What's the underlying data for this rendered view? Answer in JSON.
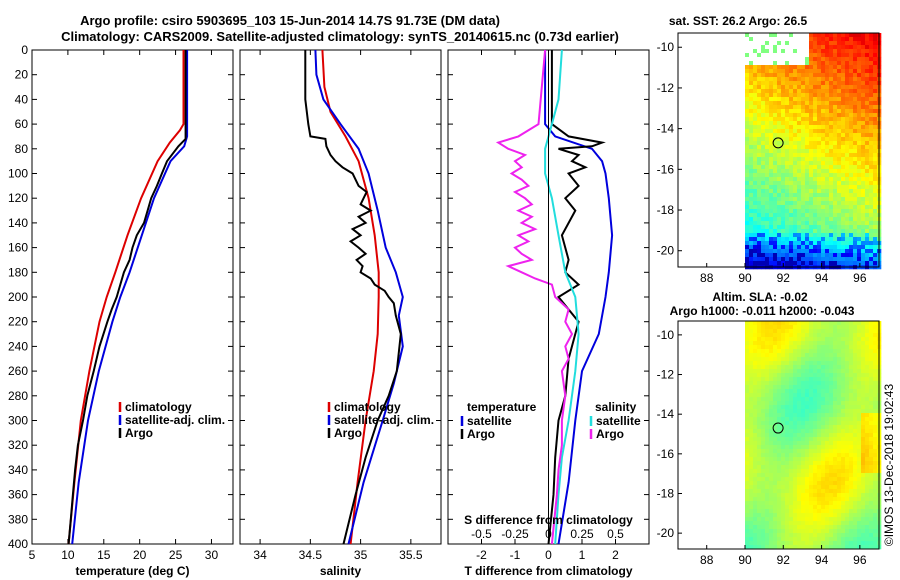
{
  "title_line1": "Argo profile: csiro 5903695_103 15-Jun-2014 14.7S 91.73E (DM data)",
  "title_line2": "Climatology: CARS2009. Satellite-adjusted climatology: synTS_20140615.nc (0.73d earlier)",
  "credit": "©IMOS 13-Dec-2018 19:02:43",
  "colors": {
    "climatology": "#dd0000",
    "satellite": "#0000dd",
    "argo": "#000000",
    "s_diff": "#ee22ee",
    "sat_s_diff": "#22dddd"
  },
  "chart_data": [
    {
      "type": "line",
      "id": "temperature",
      "xlabel": "temperature (deg C)",
      "xlim": [
        5,
        33
      ],
      "ylim": [
        400,
        0
      ],
      "xticks": [
        "5",
        "10",
        "15",
        "20",
        "25",
        "30"
      ],
      "xtick_vals": [
        5,
        10,
        15,
        20,
        25,
        30
      ],
      "yticks": [
        "0",
        "20",
        "40",
        "60",
        "80",
        "100",
        "120",
        "140",
        "160",
        "180",
        "200",
        "220",
        "240",
        "260",
        "280",
        "300",
        "320",
        "340",
        "360",
        "380",
        "400"
      ],
      "legend": [
        "climatology",
        "satellite-adj. clim.",
        "Argo"
      ],
      "series": [
        {
          "name": "climatology",
          "color": "climatology",
          "depth": [
            0,
            60,
            65,
            75,
            90,
            120,
            150,
            180,
            200,
            220,
            260,
            300,
            350,
            400
          ],
          "values": [
            26.1,
            26.1,
            25.6,
            24.2,
            22.5,
            20.2,
            18.3,
            16.6,
            15.4,
            14.4,
            13.0,
            11.8,
            10.9,
            10.1
          ]
        },
        {
          "name": "satellite-adj. clim.",
          "color": "satellite",
          "depth": [
            0,
            70,
            78,
            90,
            120,
            150,
            180,
            200,
            220,
            260,
            300,
            350,
            400
          ],
          "values": [
            26.6,
            26.6,
            26.2,
            24.3,
            22.0,
            20.3,
            18.6,
            17.3,
            16.2,
            14.3,
            12.8,
            11.5,
            10.6
          ]
        },
        {
          "name": "Argo",
          "color": "argo",
          "depth": [
            0,
            72,
            78,
            90,
            100,
            110,
            120,
            130,
            140,
            150,
            160,
            170,
            180,
            190,
            200,
            210,
            220,
            240,
            260,
            280,
            300,
            320,
            340,
            360,
            380,
            400
          ],
          "values": [
            26.4,
            26.4,
            25.4,
            23.8,
            23.1,
            22.4,
            21.6,
            21.1,
            20.6,
            19.6,
            19.0,
            18.6,
            17.8,
            17.3,
            16.8,
            16.1,
            15.5,
            14.4,
            13.6,
            12.7,
            12.1,
            11.4,
            11.0,
            10.7,
            10.4,
            10.1
          ]
        }
      ]
    },
    {
      "type": "line",
      "id": "salinity",
      "xlabel": "salinity",
      "xlim": [
        33.8,
        35.8
      ],
      "ylim": [
        400,
        0
      ],
      "xticks": [
        "34",
        "34.5",
        "35",
        "35.5"
      ],
      "xtick_vals": [
        34,
        34.5,
        35,
        35.5
      ],
      "legend": [
        "climatology",
        "satellite-adj. clim.",
        "Argo"
      ],
      "series": [
        {
          "name": "climatology",
          "color": "climatology",
          "depth": [
            0,
            30,
            50,
            70,
            90,
            120,
            150,
            180,
            200,
            230,
            260,
            300,
            350,
            400
          ],
          "values": [
            34.62,
            34.64,
            34.7,
            34.85,
            34.98,
            35.08,
            35.14,
            35.18,
            35.18,
            35.17,
            35.13,
            35.05,
            34.97,
            34.9
          ]
        },
        {
          "name": "satellite-adj. clim.",
          "color": "satellite",
          "depth": [
            0,
            20,
            40,
            60,
            80,
            100,
            130,
            160,
            180,
            200,
            215,
            240,
            270,
            300,
            350,
            400
          ],
          "values": [
            34.55,
            34.56,
            34.63,
            34.8,
            34.98,
            35.08,
            35.17,
            35.25,
            35.35,
            35.42,
            35.38,
            35.42,
            35.33,
            35.22,
            35.03,
            34.88
          ]
        },
        {
          "name": "Argo",
          "color": "argo",
          "depth": [
            0,
            40,
            60,
            70,
            72,
            78,
            85,
            90,
            95,
            100,
            105,
            110,
            115,
            120,
            125,
            130,
            135,
            140,
            145,
            150,
            155,
            160,
            165,
            170,
            175,
            180,
            185,
            190,
            195,
            200,
            205,
            215,
            230,
            245,
            260,
            280,
            300,
            330,
            360,
            400
          ],
          "values": [
            34.45,
            34.45,
            34.48,
            34.5,
            34.65,
            34.66,
            34.7,
            34.75,
            34.82,
            34.92,
            34.95,
            34.98,
            35.06,
            35.03,
            35.0,
            35.1,
            34.98,
            35.05,
            34.92,
            35.0,
            34.9,
            34.98,
            35.05,
            34.96,
            35.02,
            35.0,
            35.1,
            35.14,
            35.24,
            35.28,
            35.33,
            35.35,
            35.4,
            35.38,
            35.36,
            35.28,
            35.17,
            35.05,
            34.95,
            34.83
          ]
        }
      ]
    },
    {
      "type": "line",
      "id": "difference",
      "xlabel": "T difference from climatology",
      "xlabel_top": "S difference from climatology",
      "xlim": [
        -3,
        3
      ],
      "ylim": [
        400,
        0
      ],
      "xticks": [
        "-2",
        "-1",
        "0",
        "1",
        "2"
      ],
      "xtick_vals": [
        -2,
        -1,
        0,
        1,
        2
      ],
      "s_ticks": [
        "-0.5",
        "-0.25",
        "0",
        "0.25",
        "0.5"
      ],
      "s_tick_vals": [
        -2,
        -1,
        0,
        1,
        2
      ],
      "legend_left": {
        "title": "temperature",
        "items": [
          "satellite",
          "Argo"
        ]
      },
      "legend_right": {
        "title": "salinity",
        "items": [
          "satellite",
          "Argo"
        ]
      },
      "series": [
        {
          "name": "T satellite",
          "color": "satellite",
          "depth": [
            0,
            60,
            70,
            80,
            90,
            100,
            120,
            150,
            180,
            200,
            230,
            260,
            300,
            350,
            400
          ],
          "values": [
            -0.1,
            -0.1,
            0.2,
            1.3,
            1.6,
            1.7,
            1.8,
            1.9,
            1.8,
            1.7,
            1.5,
            1.0,
            0.8,
            0.6,
            0.3
          ]
        },
        {
          "name": "T Argo",
          "color": "argo",
          "depth": [
            0,
            60,
            70,
            75,
            78,
            80,
            85,
            90,
            95,
            100,
            110,
            120,
            130,
            150,
            170,
            180,
            190,
            200,
            220,
            250,
            280,
            300,
            330,
            360,
            400
          ],
          "values": [
            0.1,
            0.1,
            0.6,
            1.6,
            1.3,
            0.3,
            0.9,
            0.7,
            1.1,
            0.6,
            0.9,
            0.5,
            0.8,
            0.4,
            0.6,
            0.5,
            0.9,
            0.3,
            0.9,
            0.6,
            0.5,
            0.3,
            0.2,
            0.15,
            0.0
          ]
        },
        {
          "name": "S satellite",
          "color": "sat_s_diff",
          "depth": [
            0,
            40,
            60,
            80,
            100,
            120,
            150,
            180,
            200,
            230,
            260,
            300,
            330,
            360,
            400
          ],
          "values": [
            0.4,
            0.3,
            0.1,
            -0.1,
            -0.1,
            0.1,
            0.3,
            0.5,
            0.8,
            0.9,
            0.8,
            0.6,
            0.4,
            0.3,
            0.2
          ]
        },
        {
          "name": "S Argo",
          "color": "s_diff",
          "depth": [
            0,
            60,
            70,
            75,
            80,
            85,
            90,
            95,
            100,
            105,
            110,
            115,
            120,
            125,
            130,
            135,
            140,
            145,
            150,
            155,
            160,
            165,
            170,
            175,
            180,
            185,
            190,
            200,
            210,
            220,
            230,
            240,
            250,
            260,
            280,
            300,
            320,
            340,
            360,
            400
          ],
          "values": [
            -0.1,
            -0.3,
            -0.9,
            -1.5,
            -1.2,
            -0.7,
            -1.0,
            -0.8,
            -1.1,
            -0.8,
            -0.6,
            -1.0,
            -0.7,
            -0.5,
            -0.9,
            -0.5,
            -0.8,
            -0.4,
            -0.9,
            -0.6,
            -1.0,
            -0.8,
            -0.5,
            -1.2,
            -0.8,
            -0.4,
            0.1,
            0.2,
            0.6,
            0.5,
            0.7,
            0.5,
            0.6,
            0.4,
            0.5,
            0.4,
            0.4,
            0.3,
            0.25,
            0.1
          ]
        }
      ]
    },
    {
      "type": "heatmap",
      "id": "sst_map",
      "title": "sat. SST: 26.2 Argo: 26.5",
      "xticks": [
        "88",
        "90",
        "92",
        "94",
        "96"
      ],
      "xtick_vals": [
        88,
        90,
        92,
        94,
        96
      ],
      "yticks": [
        "-10",
        "-12",
        "-14",
        "-16",
        "-18",
        "-20"
      ],
      "ytick_vals": [
        -10,
        -12,
        -14,
        -16,
        -18,
        -20
      ],
      "xlim": [
        86.5,
        97
      ],
      "ylim": [
        -9.3,
        -20.8
      ],
      "data_lon_min": 90,
      "marker": {
        "lon": 91.73,
        "lat": -14.7
      }
    },
    {
      "type": "heatmap",
      "id": "sla_map",
      "title": "Altim. SLA: -0.02",
      "subtitle": "Argo h1000: -0.011 h2000: -0.043",
      "xticks": [
        "88",
        "90",
        "92",
        "94",
        "96"
      ],
      "xtick_vals": [
        88,
        90,
        92,
        94,
        96
      ],
      "yticks": [
        "-10",
        "-12",
        "-14",
        "-16",
        "-18",
        "-20"
      ],
      "ytick_vals": [
        -10,
        -12,
        -14,
        -16,
        -18,
        -20
      ],
      "xlim": [
        86.5,
        97
      ],
      "ylim": [
        -9.3,
        -20.8
      ],
      "data_lon_min": 90,
      "marker": {
        "lon": 91.73,
        "lat": -14.7
      }
    }
  ]
}
